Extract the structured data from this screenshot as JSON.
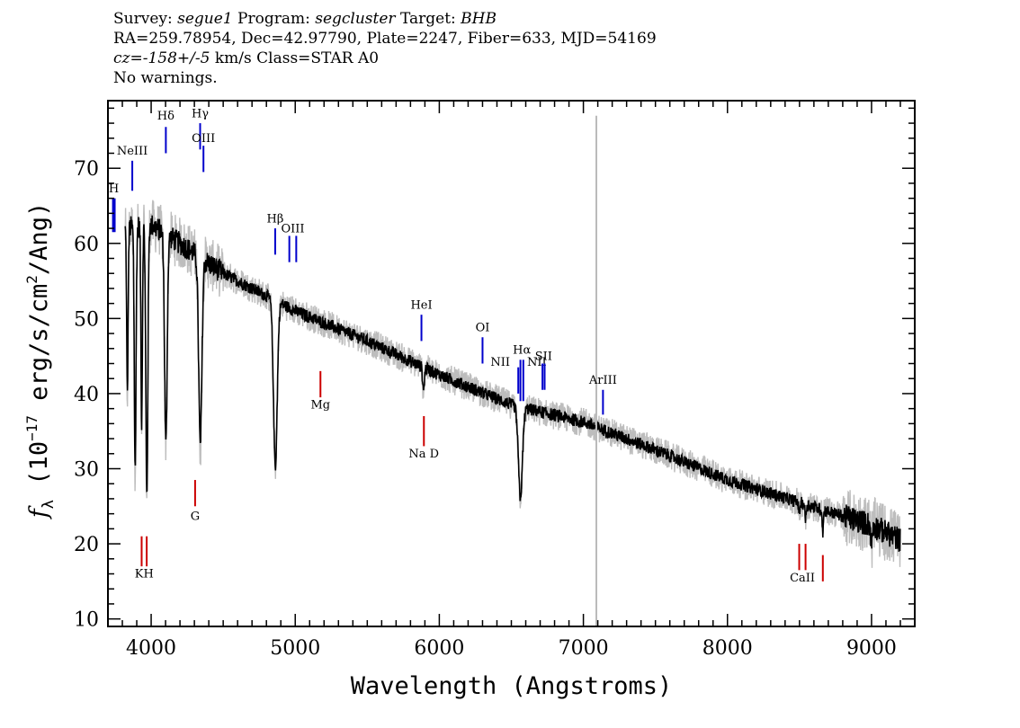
{
  "header": {
    "survey_label": "Survey:",
    "survey": "segue1",
    "program_label": "Program:",
    "program": "segcluster",
    "target_label": "Target:",
    "target": "BHB",
    "line2": "RA=259.78954, Dec=42.97790, Plate=2247, Fiber=633, MJD=54169",
    "cz": "cz=-158+/-5",
    "line3_rest": "km/s Class=STAR A0",
    "line4": "No warnings."
  },
  "chart_data": {
    "type": "line",
    "xlabel": "Wavelength (Angstroms)",
    "ylabel_base": "f",
    "ylabel_sub": "λ",
    "ylabel_rest1": " (10",
    "ylabel_exp": "−17",
    "ylabel_rest2": " erg/s/cm",
    "ylabel_exp2": "2",
    "ylabel_rest3": "/Ang)",
    "xlim": [
      3700,
      9300
    ],
    "ylim": [
      9,
      79
    ],
    "x_ticks": [
      4000,
      5000,
      6000,
      7000,
      8000,
      9000
    ],
    "y_ticks": [
      10,
      20,
      30,
      40,
      50,
      60,
      70
    ],
    "continuum": [
      [
        3800,
        62
      ],
      [
        4000,
        62.5
      ],
      [
        4200,
        60
      ],
      [
        4500,
        56
      ],
      [
        4800,
        53
      ],
      [
        5000,
        51
      ],
      [
        5500,
        47
      ],
      [
        6000,
        42.5
      ],
      [
        6500,
        38.5
      ],
      [
        7000,
        36.2
      ],
      [
        7500,
        32.5
      ],
      [
        8000,
        28.5
      ],
      [
        8500,
        25.5
      ],
      [
        9000,
        22.5
      ],
      [
        9200,
        20.5
      ]
    ],
    "absorption_lines": [
      {
        "wave": 3835,
        "depth": 22,
        "width": 5
      },
      {
        "wave": 3889,
        "depth": 32,
        "width": 6
      },
      {
        "wave": 3934,
        "depth": 26,
        "width": 5
      },
      {
        "wave": 3970,
        "depth": 36,
        "width": 7
      },
      {
        "wave": 4102,
        "depth": 28,
        "width": 9
      },
      {
        "wave": 4341,
        "depth": 25,
        "width": 11
      },
      {
        "wave": 4862,
        "depth": 22,
        "width": 13
      },
      {
        "wave": 5890,
        "depth": 3,
        "width": 6
      },
      {
        "wave": 6563,
        "depth": 12,
        "width": 14
      },
      {
        "wave": 8498,
        "depth": 1.5,
        "width": 4
      },
      {
        "wave": 8542,
        "depth": 2,
        "width": 4
      },
      {
        "wave": 8662,
        "depth": 3,
        "width": 4
      },
      {
        "wave": 9000,
        "depth": 2.5,
        "width": 5
      }
    ],
    "spike": {
      "wave": 7090,
      "color": "#bbbbbb"
    },
    "emission_lines": [
      {
        "label": "H",
        "wave": 3735,
        "y_top": 66,
        "y_bottom": 61.5,
        "label_y": 66.8,
        "double": true
      },
      {
        "label": "NeIII",
        "wave": 3869,
        "y_top": 71,
        "y_bottom": 67,
        "label_y": 71.8
      },
      {
        "label": "Hδ",
        "wave": 4102,
        "y_top": 75.5,
        "y_bottom": 72,
        "label_y": 76.5
      },
      {
        "label": "Hγ",
        "wave": 4340,
        "y_top": 76,
        "y_bottom": 72.5,
        "label_y": 76.8
      },
      {
        "label": "OIII",
        "wave": 4363,
        "y_top": 73,
        "y_bottom": 69.5,
        "label_y": 73.5
      },
      {
        "label": "Hβ",
        "wave": 4861,
        "y_top": 62,
        "y_bottom": 58.5,
        "label_y": 62.8
      },
      {
        "label": "OIII",
        "wave": 4959,
        "y_top": 61,
        "y_bottom": 57.5,
        "label_y": 61.5,
        "pair": 5007
      },
      {
        "label": "HeI",
        "wave": 5876,
        "y_top": 50.5,
        "y_bottom": 47,
        "label_y": 51.3
      },
      {
        "label": "OI",
        "wave": 6300,
        "y_top": 47.5,
        "y_bottom": 44,
        "label_y": 48.3
      },
      {
        "label": "NII",
        "wave": 6548,
        "y_top": 43.5,
        "y_bottom": 40,
        "label_y": 43.7,
        "label_dx": -20
      },
      {
        "label": "Hα",
        "wave": 6563,
        "y_top": 44.5,
        "y_bottom": 39,
        "label_y": 45.3,
        "pair": 6583
      },
      {
        "label": "NII",
        "wave": 6583,
        "y_top": 43.5,
        "y_bottom": 40,
        "label_y": 43.7,
        "label_dx": 15,
        "no_line": true
      },
      {
        "label": "SII",
        "wave": 6716,
        "y_top": 44,
        "y_bottom": 40.5,
        "label_y": 44.5,
        "pair": 6731
      },
      {
        "label": "ArIII",
        "wave": 7136,
        "y_top": 40.5,
        "y_bottom": 37.2,
        "label_y": 41.3
      }
    ],
    "absorption_markers": [
      {
        "label": "KH",
        "wave": 3934,
        "y_top": 21,
        "y_bottom": 17,
        "label_y": 15.5,
        "pair": 3969
      },
      {
        "label": "G",
        "wave": 4305,
        "y_top": 28.5,
        "y_bottom": 25,
        "label_y": 23.2
      },
      {
        "label": "Mg",
        "wave": 5175,
        "y_top": 43,
        "y_bottom": 39.5,
        "label_y": 38
      },
      {
        "label": "Na D",
        "wave": 5893,
        "y_top": 37,
        "y_bottom": 33,
        "label_y": 31.5
      },
      {
        "label": "CaII",
        "wave": 8498,
        "y_top": 20,
        "y_bottom": 16.5,
        "label_y": 15,
        "pair": 8542
      },
      {
        "label": "",
        "wave": 8662,
        "y_top": 18.5,
        "y_bottom": 15
      }
    ],
    "colors": {
      "flux": "#000000",
      "error": "#bdbdbd",
      "emission": "#0000cc",
      "absorption": "#cc0000"
    }
  }
}
